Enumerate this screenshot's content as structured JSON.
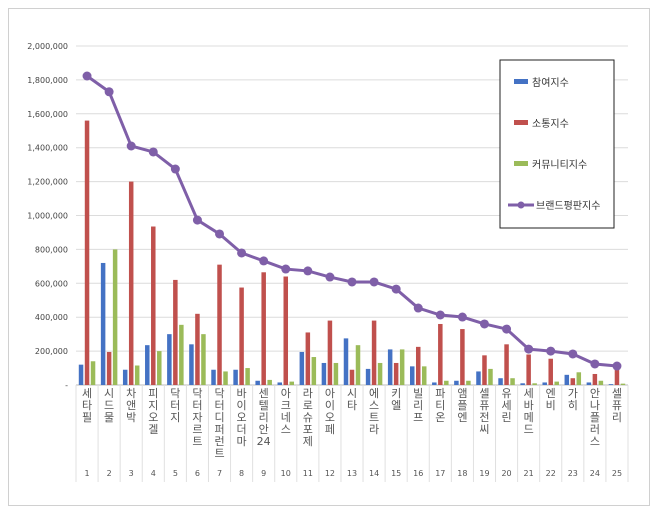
{
  "chart_data": {
    "type": "bar+line",
    "categories": [
      "세타필",
      "시드물",
      "차앤박",
      "피지오겔",
      "닥터지",
      "닥터자르트",
      "닥터디퍼런트",
      "바이오더마",
      "센텔리안24",
      "아크네스",
      "라로슈포제",
      "아이오페",
      "시타",
      "에스트라",
      "키엘",
      "빌리프",
      "파티온",
      "앰플엔",
      "셀퓨전씨",
      "유세린",
      "세바메드",
      "엔비",
      "가히",
      "안나플러스",
      "셀퓨리"
    ],
    "index_labels": [
      "1",
      "2",
      "3",
      "4",
      "5",
      "6",
      "7",
      "8",
      "9",
      "10",
      "11",
      "12",
      "13",
      "14",
      "15",
      "16",
      "17",
      "18",
      "19",
      "20",
      "21",
      "22",
      "23",
      "24",
      "25"
    ],
    "ylim": [
      0,
      2000000
    ],
    "yticks": [
      "-",
      "200,000",
      "400,000",
      "600,000",
      "800,000",
      "1,000,000",
      "1,200,000",
      "1,400,000",
      "1,600,000",
      "1,800,000",
      "2,000,000"
    ],
    "grid": true,
    "legend_position": "top-right",
    "series": [
      {
        "name": "참여지수",
        "type": "bar",
        "color": "#4472c4",
        "values": [
          120000,
          720000,
          90000,
          235000,
          300000,
          240000,
          90000,
          90000,
          25000,
          15000,
          195000,
          130000,
          275000,
          95000,
          210000,
          110000,
          15000,
          25000,
          80000,
          40000,
          10000,
          15000,
          60000,
          15000,
          5000
        ]
      },
      {
        "name": "소통지수",
        "type": "bar",
        "color": "#c0504d",
        "values": [
          1560000,
          195000,
          1200000,
          935000,
          620000,
          420000,
          710000,
          575000,
          665000,
          640000,
          310000,
          380000,
          90000,
          380000,
          130000,
          225000,
          360000,
          330000,
          175000,
          240000,
          180000,
          155000,
          40000,
          65000,
          90000
        ]
      },
      {
        "name": "커뮤니티지수",
        "type": "bar",
        "color": "#9bbb59",
        "values": [
          140000,
          800000,
          115000,
          200000,
          355000,
          300000,
          80000,
          100000,
          30000,
          20000,
          165000,
          130000,
          235000,
          130000,
          210000,
          110000,
          25000,
          25000,
          95000,
          40000,
          10000,
          20000,
          75000,
          25000,
          8000
        ]
      },
      {
        "name": "브랜드평판지수",
        "type": "line",
        "color": "#7f5fa8",
        "values": [
          1823000,
          1730000,
          1410000,
          1375000,
          1274000,
          973000,
          891000,
          779000,
          732000,
          684000,
          673000,
          637000,
          608000,
          608000,
          566000,
          454000,
          413000,
          401000,
          360000,
          330000,
          212000,
          200000,
          183000,
          124000,
          112000
        ]
      }
    ]
  }
}
